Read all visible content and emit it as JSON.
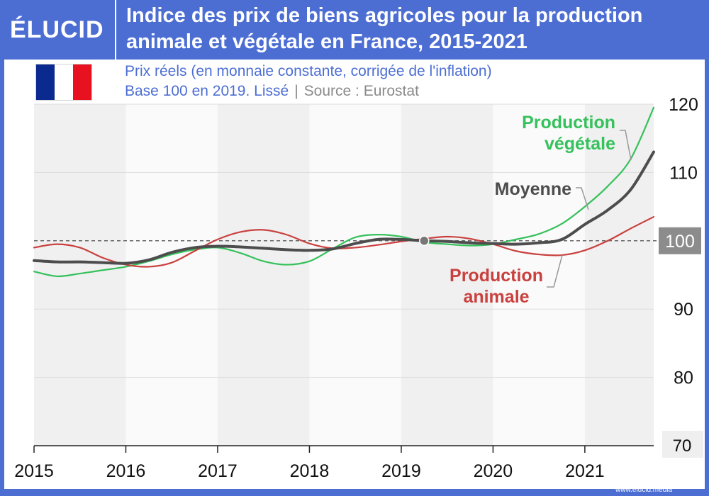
{
  "header": {
    "logo": "ÉLUCID",
    "title": "Indice des prix de biens agricoles pour la production animale et végétale en France, 2015-2021",
    "subtitle_line1": "Prix réels (en monnaie constante, corrigée de l'inflation)",
    "subtitle_line2": "Base 100 en 2019. Lissé",
    "source": "Source : Eurostat"
  },
  "flag": {
    "name": "France",
    "colors": [
      "#0b2a8f",
      "#ffffff",
      "#e8111f"
    ]
  },
  "footer": {
    "url": "www.elucid.media"
  },
  "colors": {
    "frame": "#4c6ed3",
    "vegetale": "#35c15b",
    "moyenne": "#4d4d4d",
    "animale": "#c9413e",
    "baseline": "#666666"
  },
  "chart_data": {
    "type": "line",
    "x_unit": "year",
    "xlim": [
      2015,
      2021.75
    ],
    "ylim": [
      70,
      120
    ],
    "x_ticks": [
      "2015",
      "2016",
      "2017",
      "2018",
      "2019",
      "2020",
      "2021"
    ],
    "y_ticks": [
      "80",
      "90",
      "100",
      "110",
      "120"
    ],
    "y_tick_70": "70",
    "baseline": 100,
    "base_marker": {
      "x": 2019.25,
      "y": 100
    },
    "grid": "alternating year bands",
    "series": [
      {
        "name": "Production végétale",
        "label_lines": [
          "Production",
          "végétale"
        ],
        "x": [
          2015,
          2015.25,
          2015.5,
          2015.75,
          2016,
          2016.25,
          2016.5,
          2016.75,
          2017,
          2017.25,
          2017.5,
          2017.75,
          2018,
          2018.25,
          2018.5,
          2018.75,
          2019,
          2019.25,
          2019.5,
          2019.75,
          2020,
          2020.25,
          2020.5,
          2020.75,
          2021,
          2021.25,
          2021.5,
          2021.75
        ],
        "y": [
          95.5,
          94.8,
          95.2,
          95.7,
          96.2,
          97.0,
          98.0,
          98.7,
          99.0,
          98.2,
          97.0,
          96.5,
          97.0,
          98.8,
          100.5,
          100.9,
          100.6,
          99.8,
          99.5,
          99.3,
          99.5,
          100.2,
          101.0,
          102.5,
          105.0,
          108.0,
          112.0,
          119.5
        ]
      },
      {
        "name": "Moyenne",
        "label_lines": [
          "Moyenne"
        ],
        "x": [
          2015,
          2015.25,
          2015.5,
          2015.75,
          2016,
          2016.25,
          2016.5,
          2016.75,
          2017,
          2017.25,
          2017.5,
          2017.75,
          2018,
          2018.25,
          2018.5,
          2018.75,
          2019,
          2019.25,
          2019.5,
          2019.75,
          2020,
          2020.25,
          2020.5,
          2020.75,
          2021,
          2021.25,
          2021.5,
          2021.75
        ],
        "y": [
          97.1,
          96.9,
          96.9,
          96.8,
          96.7,
          97.2,
          98.3,
          99.0,
          99.2,
          99.1,
          98.9,
          98.7,
          98.6,
          98.8,
          99.6,
          100.2,
          100.2,
          100.0,
          99.9,
          99.7,
          99.6,
          99.5,
          99.7,
          100.2,
          102.4,
          104.5,
          107.5,
          113.0
        ]
      },
      {
        "name": "Production animale",
        "label_lines": [
          "Production",
          "animale"
        ],
        "x": [
          2015,
          2015.25,
          2015.5,
          2015.75,
          2016,
          2016.25,
          2016.5,
          2016.75,
          2017,
          2017.25,
          2017.5,
          2017.75,
          2018,
          2018.25,
          2018.5,
          2018.75,
          2019,
          2019.25,
          2019.5,
          2019.75,
          2020,
          2020.25,
          2020.5,
          2020.75,
          2021,
          2021.25,
          2021.5,
          2021.75
        ],
        "y": [
          99.0,
          99.5,
          99.0,
          97.5,
          96.5,
          96.2,
          96.8,
          98.5,
          100.2,
          101.3,
          101.6,
          100.9,
          99.6,
          98.9,
          99.0,
          99.4,
          99.9,
          100.3,
          100.6,
          100.3,
          99.5,
          98.5,
          98.0,
          97.9,
          98.6,
          100.0,
          101.8,
          103.5
        ]
      }
    ]
  }
}
